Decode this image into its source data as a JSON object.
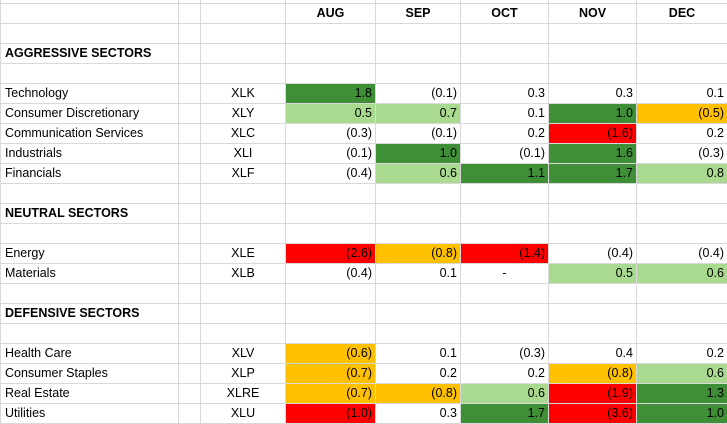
{
  "months": [
    "AUG",
    "SEP",
    "OCT",
    "NOV",
    "DEC"
  ],
  "sections": [
    {
      "title": "AGGRESSIVE SECTORS",
      "rows": [
        {
          "name": "Technology",
          "ticker": "XLK",
          "values": [
            "1.8",
            "(0.1)",
            "0.3",
            "0.3",
            "0.1"
          ],
          "fills": [
            "#3f8f36",
            null,
            null,
            null,
            null
          ]
        },
        {
          "name": "Consumer Discretionary",
          "ticker": "XLY",
          "values": [
            "0.5",
            "0.7",
            "0.1",
            "1.0",
            "(0.5)"
          ],
          "fills": [
            "#a9da8f",
            "#a9da8f",
            null,
            "#3f8f36",
            "#ffc000"
          ]
        },
        {
          "name": "Communication Services",
          "ticker": "XLC",
          "values": [
            "(0.3)",
            "(0.1)",
            "0.2",
            "(1.6)",
            "0.2"
          ],
          "fills": [
            null,
            null,
            null,
            "#ff0000",
            null
          ]
        },
        {
          "name": "Industrials",
          "ticker": "XLI",
          "values": [
            "(0.1)",
            "1.0",
            "(0.1)",
            "1.6",
            "(0.3)"
          ],
          "fills": [
            null,
            "#3f8f36",
            null,
            "#3f8f36",
            null
          ]
        },
        {
          "name": "Financials",
          "ticker": "XLF",
          "values": [
            "(0.4)",
            "0.6",
            "1.1",
            "1.7",
            "0.8"
          ],
          "fills": [
            null,
            "#a9da8f",
            "#3f8f36",
            "#3f8f36",
            "#a9da8f"
          ]
        }
      ]
    },
    {
      "title": "NEUTRAL SECTORS",
      "rows": [
        {
          "name": "Energy",
          "ticker": "XLE",
          "values": [
            "(2.6)",
            "(0.8)",
            "(1.4)",
            "(0.4)",
            "(0.4)"
          ],
          "fills": [
            "#ff0000",
            "#ffc000",
            "#ff0000",
            null,
            null
          ]
        },
        {
          "name": "Materials",
          "ticker": "XLB",
          "values": [
            "(0.4)",
            "0.1",
            "-",
            "0.5",
            "0.6"
          ],
          "fills": [
            null,
            null,
            null,
            "#a9da8f",
            "#a9da8f"
          ]
        }
      ]
    },
    {
      "title": "DEFENSIVE SECTORS",
      "rows": [
        {
          "name": "Health Care",
          "ticker": "XLV",
          "values": [
            "(0.6)",
            "0.1",
            "(0.3)",
            "0.4",
            "0.2"
          ],
          "fills": [
            "#ffc000",
            null,
            null,
            null,
            null
          ]
        },
        {
          "name": "Consumer Staples",
          "ticker": "XLP",
          "values": [
            "(0.7)",
            "0.2",
            "0.2",
            "(0.8)",
            "0.6"
          ],
          "fills": [
            "#ffc000",
            null,
            null,
            "#ffc000",
            "#a9da8f"
          ]
        },
        {
          "name": "Real Estate",
          "ticker": "XLRE",
          "values": [
            "(0.7)",
            "(0.8)",
            "0.6",
            "(1.9)",
            "1.3"
          ],
          "fills": [
            "#ffc000",
            "#ffc000",
            "#a9da8f",
            "#ff0000",
            "#3f8f36"
          ]
        },
        {
          "name": "Utilities",
          "ticker": "XLU",
          "values": [
            "(1.0)",
            "0.3",
            "1.7",
            "(3.6)",
            "1.0"
          ],
          "fills": [
            "#ff0000",
            null,
            "#3f8f36",
            "#ff0000",
            "#3f8f36"
          ]
        }
      ]
    }
  ]
}
